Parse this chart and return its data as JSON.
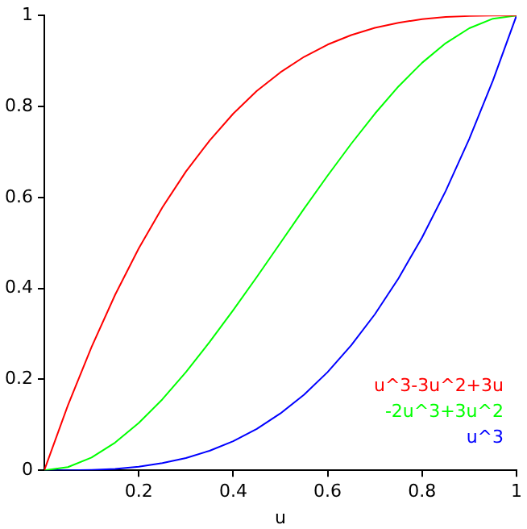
{
  "chart_data": {
    "type": "line",
    "xlabel": "u",
    "x": [
      0,
      0.05,
      0.1,
      0.15,
      0.2,
      0.25,
      0.3,
      0.35,
      0.4,
      0.45,
      0.5,
      0.55,
      0.6,
      0.65,
      0.7,
      0.75,
      0.8,
      0.85,
      0.9,
      0.95,
      1
    ],
    "series": [
      {
        "name": "u^3-3u^2+3u",
        "color": "#ff0000",
        "values": [
          0,
          0.143,
          0.271,
          0.386,
          0.488,
          0.578,
          0.657,
          0.725,
          0.784,
          0.834,
          0.875,
          0.909,
          0.936,
          0.957,
          0.973,
          0.984,
          0.992,
          0.997,
          0.999,
          1,
          1
        ]
      },
      {
        "name": "-2u^3+3u^2",
        "color": "#00ff00",
        "values": [
          0,
          0.007,
          0.028,
          0.061,
          0.104,
          0.156,
          0.216,
          0.282,
          0.352,
          0.425,
          0.5,
          0.575,
          0.648,
          0.718,
          0.784,
          0.844,
          0.896,
          0.939,
          0.972,
          0.993,
          1
        ]
      },
      {
        "name": "u^3",
        "color": "#0000ff",
        "values": [
          0,
          0,
          0.001,
          0.003,
          0.008,
          0.016,
          0.027,
          0.043,
          0.064,
          0.091,
          0.125,
          0.166,
          0.216,
          0.275,
          0.343,
          0.422,
          0.512,
          0.614,
          0.729,
          0.857,
          1
        ]
      }
    ],
    "xlim": [
      0,
      1
    ],
    "ylim": [
      0,
      1
    ],
    "xticks": [
      0.2,
      0.4,
      0.6,
      0.8,
      1
    ],
    "yticks": [
      0,
      0.2,
      0.4,
      0.6,
      0.8,
      1
    ],
    "grid": false,
    "legend": "bottom right",
    "marker": "none",
    "line_style": "solid"
  }
}
